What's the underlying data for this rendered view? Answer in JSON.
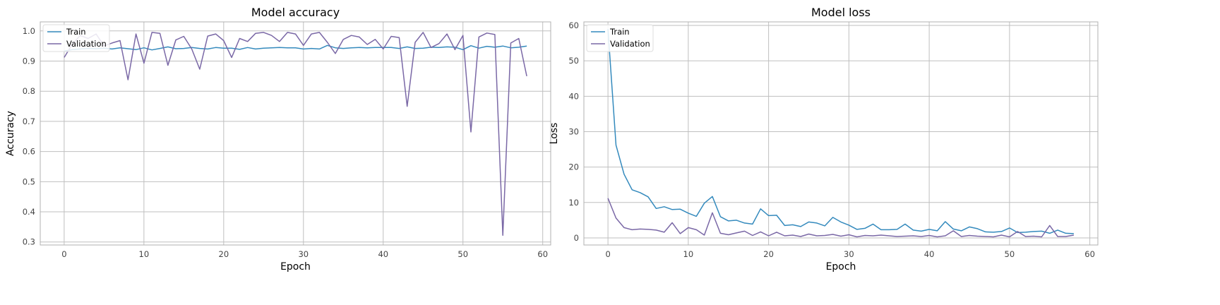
{
  "chart_data": [
    {
      "type": "line",
      "title": "Model accuracy",
      "xlabel": "Epoch",
      "ylabel": "Accuracy",
      "xlim": [
        -3,
        61
      ],
      "ylim": [
        0.29,
        1.03
      ],
      "xticks": [
        0,
        10,
        20,
        30,
        40,
        50,
        60
      ],
      "yticks": [
        0.3,
        0.4,
        0.5,
        0.6,
        0.7,
        0.8,
        0.9,
        1.0
      ],
      "ytick_labels": [
        "0.3",
        "0.4",
        "0.5",
        "0.6",
        "0.7",
        "0.8",
        "0.9",
        "1.0"
      ],
      "grid": true,
      "legend_loc": "upper left",
      "series": [
        {
          "name": "Train",
          "color": "#348ABD",
          "x": [
            0,
            1,
            2,
            3,
            4,
            5,
            6,
            7,
            8,
            9,
            10,
            11,
            12,
            13,
            14,
            15,
            16,
            17,
            18,
            19,
            20,
            21,
            22,
            23,
            24,
            25,
            26,
            27,
            28,
            29,
            30,
            31,
            32,
            33,
            34,
            35,
            36,
            37,
            38,
            39,
            40,
            41,
            42,
            43,
            44,
            45,
            46,
            47,
            48,
            49,
            50,
            51,
            52,
            53,
            54,
            55,
            56,
            57,
            58
          ],
          "y": [
            0.933,
            0.938,
            0.94,
            0.942,
            0.941,
            0.943,
            0.94,
            0.944,
            0.941,
            0.938,
            0.944,
            0.937,
            0.942,
            0.947,
            0.941,
            0.942,
            0.945,
            0.942,
            0.94,
            0.945,
            0.943,
            0.943,
            0.939,
            0.945,
            0.94,
            0.943,
            0.944,
            0.945,
            0.944,
            0.944,
            0.94,
            0.942,
            0.94,
            0.952,
            0.944,
            0.942,
            0.944,
            0.945,
            0.944,
            0.945,
            0.945,
            0.945,
            0.942,
            0.947,
            0.942,
            0.943,
            0.946,
            0.945,
            0.947,
            0.946,
            0.938,
            0.951,
            0.943,
            0.949,
            0.946,
            0.95,
            0.944,
            0.946,
            0.95
          ]
        },
        {
          "name": "Validation",
          "color": "#7A68A6",
          "x": [
            0,
            1,
            2,
            3,
            4,
            5,
            6,
            7,
            8,
            9,
            10,
            11,
            12,
            13,
            14,
            15,
            16,
            17,
            18,
            19,
            20,
            21,
            22,
            23,
            24,
            25,
            26,
            27,
            28,
            29,
            30,
            31,
            32,
            33,
            34,
            35,
            36,
            37,
            38,
            39,
            40,
            41,
            42,
            43,
            44,
            45,
            46,
            47,
            48,
            49,
            50,
            51,
            52,
            53,
            54,
            55,
            56,
            57,
            58
          ],
          "y": [
            0.912,
            0.955,
            0.985,
            0.975,
            0.99,
            0.95,
            0.96,
            0.968,
            0.838,
            0.99,
            0.893,
            0.995,
            0.992,
            0.886,
            0.97,
            0.982,
            0.94,
            0.873,
            0.983,
            0.99,
            0.968,
            0.912,
            0.975,
            0.965,
            0.992,
            0.995,
            0.985,
            0.965,
            0.995,
            0.99,
            0.952,
            0.99,
            0.995,
            0.962,
            0.925,
            0.972,
            0.985,
            0.98,
            0.955,
            0.972,
            0.94,
            0.982,
            0.978,
            0.75,
            0.962,
            0.995,
            0.945,
            0.958,
            0.99,
            0.938,
            0.985,
            0.665,
            0.98,
            0.993,
            0.988,
            0.322,
            0.96,
            0.975,
            0.85
          ]
        }
      ]
    },
    {
      "type": "line",
      "title": "Model loss",
      "xlabel": "Epoch",
      "ylabel": "Loss",
      "xlim": [
        -3,
        61
      ],
      "ylim": [
        -2,
        61
      ],
      "xticks": [
        0,
        10,
        20,
        30,
        40,
        50,
        60
      ],
      "yticks": [
        0,
        10,
        20,
        30,
        40,
        50,
        60
      ],
      "ytick_labels": [
        "0",
        "10",
        "20",
        "30",
        "40",
        "50",
        "60"
      ],
      "grid": true,
      "legend_loc": "upper left",
      "series": [
        {
          "name": "Train",
          "color": "#348ABD",
          "x": [
            0,
            1,
            2,
            3,
            4,
            5,
            6,
            7,
            8,
            9,
            10,
            11,
            12,
            13,
            14,
            15,
            16,
            17,
            18,
            19,
            20,
            21,
            22,
            23,
            24,
            25,
            26,
            27,
            28,
            29,
            30,
            31,
            32,
            33,
            34,
            35,
            36,
            37,
            38,
            39,
            40,
            41,
            42,
            43,
            44,
            45,
            46,
            47,
            48,
            49,
            50,
            51,
            52,
            53,
            54,
            55,
            56,
            57,
            58
          ],
          "y": [
            59.0,
            26.2,
            18.0,
            13.6,
            12.8,
            11.6,
            8.3,
            8.8,
            8.0,
            8.1,
            7.0,
            6.1,
            9.8,
            11.7,
            6.0,
            4.8,
            5.0,
            4.2,
            3.9,
            8.2,
            6.3,
            6.4,
            3.5,
            3.7,
            3.2,
            4.5,
            4.2,
            3.4,
            5.8,
            4.5,
            3.6,
            2.4,
            2.7,
            3.9,
            2.3,
            2.3,
            2.4,
            3.9,
            2.2,
            1.9,
            2.4,
            2.0,
            4.6,
            2.5,
            2.0,
            3.1,
            2.6,
            1.7,
            1.6,
            1.8,
            2.8,
            1.5,
            1.6,
            1.8,
            1.9,
            1.3,
            2.2,
            1.3,
            1.2
          ]
        },
        {
          "name": "Validation",
          "color": "#7A68A6",
          "x": [
            0,
            1,
            2,
            3,
            4,
            5,
            6,
            7,
            8,
            9,
            10,
            11,
            12,
            13,
            14,
            15,
            16,
            17,
            18,
            19,
            20,
            21,
            22,
            23,
            24,
            25,
            26,
            27,
            28,
            29,
            30,
            31,
            32,
            33,
            34,
            35,
            36,
            37,
            38,
            39,
            40,
            41,
            42,
            43,
            44,
            45,
            46,
            47,
            48,
            49,
            50,
            51,
            52,
            53,
            54,
            55,
            56,
            57,
            58
          ],
          "y": [
            11.2,
            5.6,
            2.9,
            2.3,
            2.5,
            2.4,
            2.2,
            1.6,
            4.3,
            1.2,
            2.9,
            2.3,
            0.8,
            7.1,
            1.3,
            0.9,
            1.4,
            1.9,
            0.7,
            1.7,
            0.6,
            1.6,
            0.6,
            0.8,
            0.4,
            1.1,
            0.6,
            0.7,
            1.0,
            0.5,
            0.9,
            0.3,
            0.7,
            0.6,
            0.8,
            0.6,
            0.4,
            0.5,
            0.6,
            0.4,
            0.7,
            0.3,
            0.6,
            2.0,
            0.4,
            0.7,
            0.5,
            0.4,
            0.3,
            0.8,
            0.3,
            1.8,
            0.4,
            0.5,
            0.3,
            3.5,
            0.4,
            0.4,
            0.8
          ]
        }
      ]
    }
  ]
}
